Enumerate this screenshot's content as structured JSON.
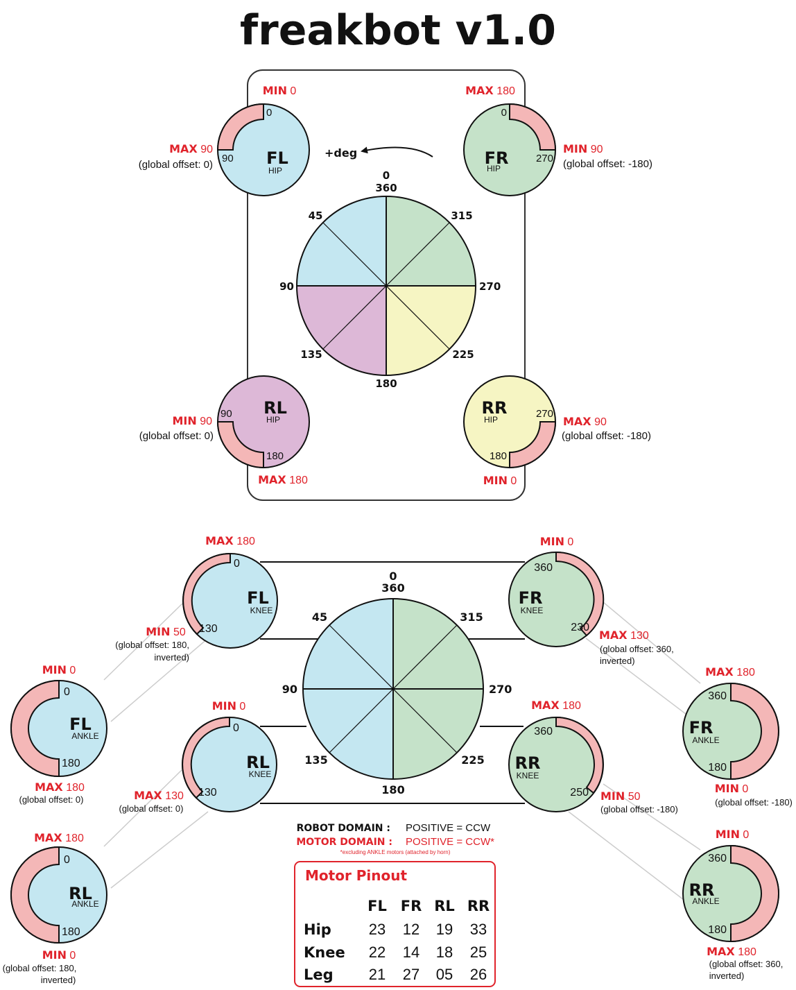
{
  "title": "freakbot v1.0",
  "colors": {
    "fl": "#c4e7f1",
    "fr": "#c5e2c9",
    "rl": "#ddb8d7",
    "rr": "#f6f5c3",
    "range": "#f4b7b7",
    "label_red": "#e0232b",
    "pinout_border": "#e0232b"
  },
  "hip_wheel": {
    "direction_label": "+deg",
    "angle_labels": {
      "a0": "0",
      "a360": "360",
      "a45": "45",
      "a90": "90",
      "a135": "135",
      "a180": "180",
      "a225": "225",
      "a270": "270",
      "a315": "315"
    }
  },
  "knee_wheel": {
    "angle_labels": {
      "a0": "0",
      "a360": "360",
      "a45": "45",
      "a90": "90",
      "a135": "135",
      "a180": "180",
      "a225": "225",
      "a270": "270",
      "a315": "315"
    }
  },
  "motors": {
    "fl_hip": {
      "name": "FL",
      "part": "HIP",
      "tick_a": "0",
      "tick_b": "90",
      "top_label": {
        "kw": "MIN",
        "val": "0"
      },
      "side_label": {
        "kw": "MAX",
        "val": "90"
      },
      "offset": "(global offset: 0)"
    },
    "fr_hip": {
      "name": "FR",
      "part": "HIP",
      "tick_a": "0",
      "tick_b": "270",
      "top_label": {
        "kw": "MAX",
        "val": "180"
      },
      "side_label": {
        "kw": "MIN",
        "val": "90"
      },
      "offset": "(global offset: -180)"
    },
    "rl_hip": {
      "name": "RL",
      "part": "HIP",
      "tick_a": "90",
      "tick_b": "180",
      "side_label": {
        "kw": "MIN",
        "val": "90"
      },
      "offset": "(global offset: 0)",
      "bottom_label": {
        "kw": "MAX",
        "val": "180"
      }
    },
    "rr_hip": {
      "name": "RR",
      "part": "HIP",
      "tick_a": "270",
      "tick_b": "180",
      "side_label": {
        "kw": "MAX",
        "val": "90"
      },
      "offset": "(global offset: -180)",
      "bottom_label": {
        "kw": "MIN",
        "val": "0"
      }
    },
    "fl_knee": {
      "name": "FL",
      "part": "KNEE",
      "tick_a": "0",
      "tick_b": "130",
      "top_label": {
        "kw": "MAX",
        "val": "180"
      },
      "bottom_label": {
        "kw": "MIN",
        "val": "50"
      },
      "offset_1": "(global offset: 180,",
      "offset_2": "inverted)"
    },
    "fr_knee": {
      "name": "FR",
      "part": "KNEE",
      "tick_a": "360",
      "tick_b": "230",
      "top_label": {
        "kw": "MIN",
        "val": "0"
      },
      "bottom_label": {
        "kw": "MAX",
        "val": "130"
      },
      "offset_1": "(global offset: 360,",
      "offset_2": "inverted)"
    },
    "rl_knee": {
      "name": "RL",
      "part": "KNEE",
      "tick_a": "0",
      "tick_b": "130",
      "top_label": {
        "kw": "MIN",
        "val": "0"
      },
      "bottom_label": {
        "kw": "MAX",
        "val": "130"
      },
      "offset": "(global offset: 0)"
    },
    "rr_knee": {
      "name": "RR",
      "part": "KNEE",
      "tick_a": "360",
      "tick_b": "250",
      "top_label": {
        "kw": "MAX",
        "val": "180"
      },
      "bottom_label": {
        "kw": "MIN",
        "val": "50"
      },
      "offset": "(global offset: -180)"
    },
    "fl_ankle": {
      "name": "FL",
      "part": "ANKLE",
      "tick_a": "0",
      "tick_b": "180",
      "top_label": {
        "kw": "MIN",
        "val": "0"
      },
      "bottom_label": {
        "kw": "MAX",
        "val": "180"
      },
      "offset": "(global offset: 0)"
    },
    "fr_ankle": {
      "name": "FR",
      "part": "ANKLE",
      "tick_a": "360",
      "tick_b": "180",
      "top_label": {
        "kw": "MAX",
        "val": "180"
      },
      "bottom_label": {
        "kw": "MIN",
        "val": "0"
      },
      "offset": "(global offset: -180)"
    },
    "rl_ankle": {
      "name": "RL",
      "part": "ANKLE",
      "tick_a": "0",
      "tick_b": "180",
      "top_label": {
        "kw": "MAX",
        "val": "180"
      },
      "bottom_label": {
        "kw": "MIN",
        "val": "0"
      },
      "offset_1": "(global offset: 180,",
      "offset_2": "inverted)"
    },
    "rr_ankle": {
      "name": "RR",
      "part": "ANKLE",
      "tick_a": "360",
      "tick_b": "180",
      "top_label": {
        "kw": "MIN",
        "val": "0"
      },
      "bottom_label": {
        "kw": "MAX",
        "val": "180"
      },
      "offset_1": "(global offset: 360,",
      "offset_2": "inverted)"
    }
  },
  "domains": {
    "robot_label": "ROBOT DOMAIN :",
    "robot_value": "POSITIVE = CCW",
    "motor_label": "MOTOR DOMAIN :",
    "motor_value": "POSITIVE = CCW*",
    "footnote": "*excluding ANKLE motors (attached by horn)"
  },
  "pinout": {
    "title": "Motor Pinout",
    "columns": [
      "FL",
      "FR",
      "RL",
      "RR"
    ],
    "rows": [
      {
        "label": "Hip",
        "values": [
          "23",
          "12",
          "19",
          "33"
        ]
      },
      {
        "label": "Knee",
        "values": [
          "22",
          "14",
          "18",
          "25"
        ]
      },
      {
        "label": "Leg",
        "values": [
          "21",
          "27",
          "05",
          "26"
        ]
      }
    ]
  }
}
